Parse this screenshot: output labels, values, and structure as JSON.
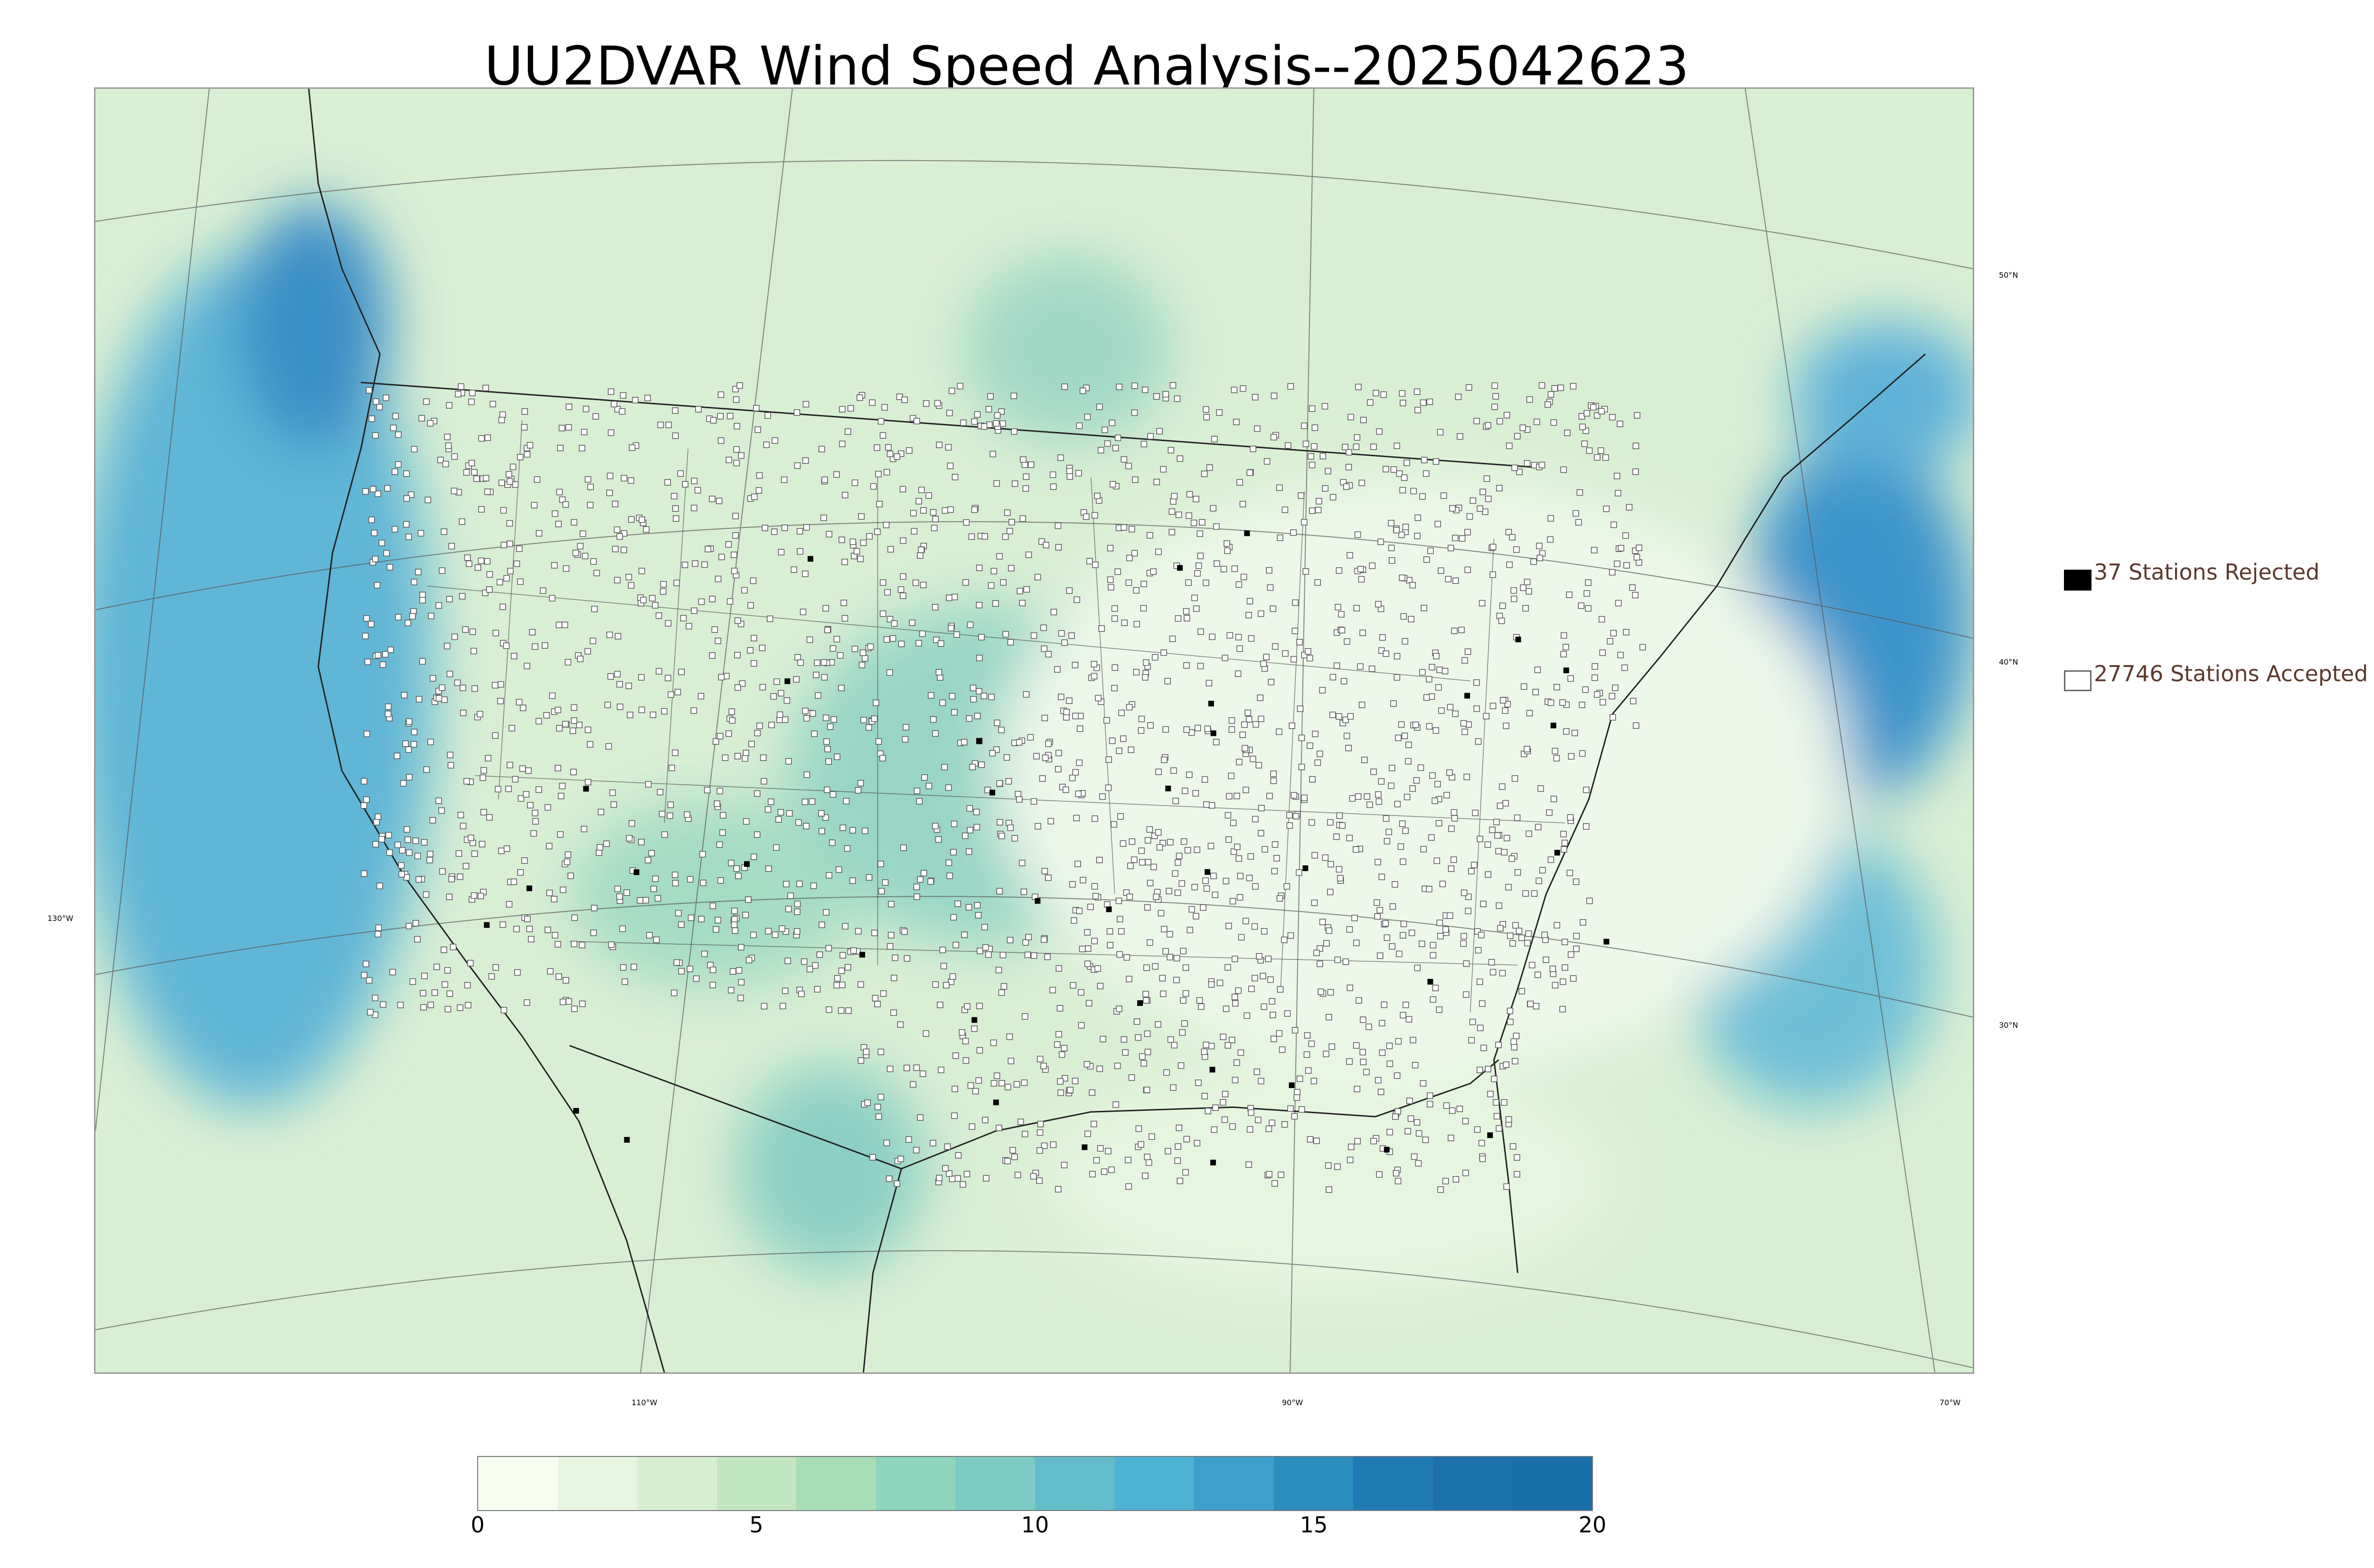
{
  "title": "UU2DVAR Wind Speed Analysis--2025042623",
  "map": {
    "lat_labels": [
      "50°N",
      "40°N",
      "30°N"
    ],
    "lon_labels": [
      "130°W",
      "110°W",
      "90°W",
      "70°W"
    ]
  },
  "legend": {
    "rejected_label": "37 Stations Rejected",
    "accepted_label": "27746 Stations Accepted",
    "rejected_color": "#000000",
    "accepted_color": "#ffffff"
  },
  "colorbar": {
    "ticks": [
      "0",
      "5",
      "10",
      "15",
      "20"
    ],
    "min": 0,
    "max": 20,
    "colors": [
      "#f7fcf0",
      "#e7f5e0",
      "#d6efd0",
      "#c2e6c0",
      "#a8ddb5",
      "#8fd4bd",
      "#7bcbc4",
      "#62bcc9",
      "#4eb3d3",
      "#3f9fcc",
      "#2b8cbe",
      "#1f7ab4",
      "#1c71ad",
      "#1a6fab"
    ]
  },
  "chart_data": {
    "type": "map",
    "title": "UU2DVAR Wind Speed Analysis--2025042623",
    "colorbar_range": [
      0,
      20
    ],
    "colorbar_ticks": [
      0,
      5,
      10,
      15,
      20
    ],
    "stations_rejected": 37,
    "stations_accepted": 27746
  }
}
